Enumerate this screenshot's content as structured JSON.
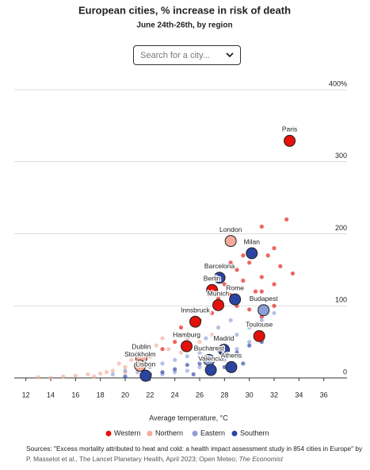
{
  "chart_data": {
    "type": "scatter",
    "title": "European cities, % increase in risk of death",
    "subtitle": "June 24th-26th, by region",
    "search_placeholder": "Search for a city...",
    "x_label": "Average temperature, °C",
    "xlim": [
      11,
      38
    ],
    "xticks": [
      12,
      14,
      16,
      18,
      20,
      22,
      24,
      26,
      28,
      30,
      32,
      34,
      36
    ],
    "ylim": [
      0,
      400
    ],
    "yticks": [
      0,
      100,
      200,
      300,
      {
        "value": 400,
        "label": "400%"
      }
    ],
    "grid": true,
    "legend": "bottom",
    "series": [
      {
        "name": "Western",
        "color": "#e3120b",
        "x": [
          29,
          30,
          31,
          32,
          30.5,
          29.5,
          31.5,
          32.5,
          33,
          31,
          30,
          28,
          28.5,
          29,
          30,
          31,
          32,
          27,
          26,
          25,
          24,
          23,
          22,
          30.5,
          33.5,
          32,
          29.5,
          28.5,
          31,
          27.5,
          26.5,
          24.5,
          33.25,
          27,
          27.5,
          25.65,
          30.8,
          24.95
        ],
        "y": [
          150,
          160,
          140,
          130,
          120,
          135,
          170,
          155,
          220,
          210,
          190,
          130,
          115,
          100,
          95,
          85,
          100,
          90,
          80,
          60,
          50,
          40,
          30,
          75,
          145,
          180,
          170,
          160,
          120,
          110,
          95,
          70,
          329,
          122,
          101,
          78,
          58,
          44
        ],
        "labels": [
          null,
          null,
          null,
          null,
          null,
          null,
          null,
          null,
          null,
          null,
          null,
          null,
          null,
          null,
          null,
          null,
          null,
          null,
          null,
          null,
          null,
          null,
          null,
          null,
          null,
          null,
          null,
          null,
          null,
          null,
          null,
          null,
          "Paris",
          "Berlin",
          "Munich",
          "Innsbruck",
          "Toulouse",
          "Hamburg"
        ]
      },
      {
        "name": "Northern",
        "color": "#f5ab9b",
        "x": [
          13,
          15,
          16,
          17,
          18,
          19,
          20,
          20.5,
          21,
          22,
          22.5,
          23,
          23.5,
          24,
          24.5,
          25,
          26,
          27,
          19.5,
          18.5,
          21.5,
          22,
          20,
          17.5,
          14,
          28.5,
          21.3,
          21.2
        ],
        "y": [
          1,
          2,
          3,
          5,
          6,
          10,
          15,
          25,
          35,
          30,
          45,
          55,
          40,
          60,
          35,
          55,
          50,
          60,
          20,
          8,
          10,
          18,
          8,
          2,
          0,
          190,
          27,
          17
        ],
        "labels": [
          null,
          null,
          null,
          null,
          null,
          null,
          null,
          null,
          null,
          null,
          null,
          null,
          null,
          null,
          null,
          null,
          null,
          null,
          null,
          null,
          null,
          null,
          null,
          null,
          null,
          "London",
          "Dublin",
          "Stockholm"
        ]
      },
      {
        "name": "Eastern",
        "color": "#8d9fd6",
        "x": [
          19,
          20,
          21,
          22,
          23,
          24,
          25,
          26,
          27,
          28,
          29,
          30,
          31,
          32,
          26,
          27,
          28,
          25,
          24,
          23,
          29,
          30,
          28.5,
          27.5,
          26.5,
          31.15,
          26.75
        ],
        "y": [
          5,
          10,
          8,
          15,
          20,
          25,
          30,
          35,
          40,
          45,
          60,
          70,
          80,
          90,
          15,
          20,
          25,
          10,
          8,
          5,
          40,
          50,
          80,
          70,
          55,
          94,
          25
        ],
        "labels": [
          null,
          null,
          null,
          null,
          null,
          null,
          null,
          null,
          null,
          null,
          null,
          null,
          null,
          null,
          null,
          null,
          null,
          null,
          null,
          null,
          null,
          null,
          null,
          null,
          null,
          "Budapest",
          "Bucharest"
        ]
      },
      {
        "name": "Southern",
        "color": "#2b44a1",
        "x": [
          20,
          22,
          23,
          24,
          25,
          26,
          27,
          28,
          29,
          30,
          31,
          29.5,
          28,
          27,
          25.5,
          30.2,
          27.6,
          28.85,
          27.95,
          26.9,
          28.55,
          21.65
        ],
        "y": [
          2,
          5,
          8,
          12,
          18,
          20,
          25,
          30,
          35,
          45,
          50,
          20,
          15,
          10,
          5,
          173,
          139,
          109,
          39,
          11,
          15,
          3
        ],
        "labels": [
          null,
          null,
          null,
          null,
          null,
          null,
          null,
          null,
          null,
          null,
          null,
          null,
          null,
          null,
          null,
          "Milan",
          "Barcelona",
          "Rome",
          "Madrid",
          "Valencia",
          "Athens",
          "Lisbon"
        ]
      }
    ],
    "source_lines": [
      "Sources: \"Excess mortality attributed to heat and cold: a health impact assessment study in 854 cities in Europe\" by",
      "P. Masselot et al., The Lancet Planetary Health, April 2023; Open Meteo;"
    ],
    "source_publisher": "The Economist"
  }
}
